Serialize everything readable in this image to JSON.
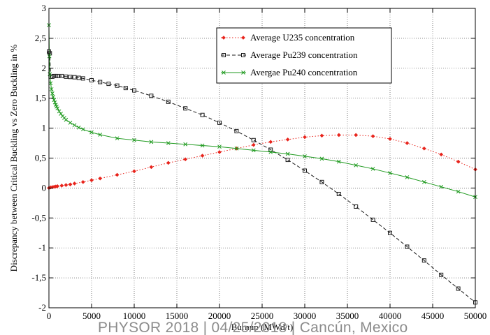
{
  "footer_text": "PHYSOR 2018 | 04/25/2018 | Cancún, Mexico",
  "chart_data": {
    "type": "line",
    "title": "",
    "xlabel": "Burnup (MWd/t)",
    "ylabel": "Discrepancy between Critical Buckling vs Zero Buckling in %",
    "xlim": [
      0,
      50000
    ],
    "ylim": [
      -2,
      3
    ],
    "grid": true,
    "grid_style": "dotted",
    "legend_position": "top-right",
    "xticks": [
      "0",
      "5000",
      "10000",
      "15000",
      "20000",
      "25000",
      "30000",
      "35000",
      "40000",
      "45000",
      "50000"
    ],
    "yticks": [
      "-2",
      "-1,5",
      "-1",
      "-0,5",
      "0",
      "0,5",
      "1",
      "1,5",
      "2",
      "2,5",
      "3"
    ],
    "series": [
      {
        "name": "Average U235 concentration",
        "color": "#e8231b",
        "line_style": "dotted",
        "marker": "diamond",
        "x": [
          0,
          200,
          400,
          600,
          800,
          1000,
          1500,
          2000,
          2500,
          3000,
          4000,
          5000,
          6000,
          8000,
          10000,
          12000,
          14000,
          16000,
          18000,
          20000,
          22000,
          24000,
          26000,
          28000,
          30000,
          32000,
          34000,
          36000,
          38000,
          40000,
          42000,
          44000,
          46000,
          48000,
          50000
        ],
        "y": [
          0.0,
          0.01,
          0.015,
          0.02,
          0.025,
          0.03,
          0.04,
          0.05,
          0.06,
          0.075,
          0.1,
          0.13,
          0.16,
          0.22,
          0.28,
          0.35,
          0.42,
          0.48,
          0.54,
          0.6,
          0.66,
          0.72,
          0.77,
          0.81,
          0.85,
          0.875,
          0.885,
          0.885,
          0.865,
          0.82,
          0.75,
          0.66,
          0.56,
          0.44,
          0.31
        ]
      },
      {
        "name": "Average Pu239 concentration",
        "color": "#1a1a1a",
        "line_style": "dashed",
        "marker": "square",
        "x": [
          0,
          100,
          200,
          400,
          600,
          800,
          1000,
          1500,
          2000,
          2500,
          3000,
          3500,
          4000,
          5000,
          6000,
          7000,
          8000,
          9000,
          10000,
          12000,
          14000,
          16000,
          18000,
          20000,
          22000,
          24000,
          26000,
          28000,
          30000,
          32000,
          34000,
          36000,
          38000,
          40000,
          42000,
          44000,
          46000,
          48000,
          50000
        ],
        "y": [
          2.28,
          2.25,
          1.86,
          1.86,
          1.87,
          1.87,
          1.87,
          1.87,
          1.86,
          1.855,
          1.85,
          1.84,
          1.83,
          1.8,
          1.77,
          1.74,
          1.71,
          1.67,
          1.63,
          1.54,
          1.44,
          1.33,
          1.22,
          1.09,
          0.95,
          0.8,
          0.64,
          0.47,
          0.29,
          0.1,
          -0.1,
          -0.31,
          -0.53,
          -0.75,
          -0.98,
          -1.21,
          -1.45,
          -1.68,
          -1.91
        ]
      },
      {
        "name": "Avergae Pu240 concentration",
        "color": "#1f9a1f",
        "line_style": "solid",
        "marker": "x",
        "x": [
          0,
          50,
          100,
          200,
          300,
          400,
          500,
          600,
          700,
          800,
          900,
          1000,
          1200,
          1400,
          1600,
          1800,
          2000,
          2500,
          3000,
          3500,
          4000,
          5000,
          6000,
          8000,
          10000,
          12000,
          14000,
          16000,
          18000,
          20000,
          22000,
          24000,
          26000,
          28000,
          30000,
          32000,
          34000,
          36000,
          38000,
          40000,
          42000,
          44000,
          46000,
          48000,
          50000
        ],
        "y": [
          2.72,
          2.2,
          1.9,
          1.75,
          1.65,
          1.58,
          1.52,
          1.47,
          1.43,
          1.39,
          1.36,
          1.33,
          1.28,
          1.24,
          1.2,
          1.17,
          1.14,
          1.09,
          1.05,
          1.01,
          0.98,
          0.93,
          0.89,
          0.83,
          0.8,
          0.77,
          0.75,
          0.73,
          0.71,
          0.69,
          0.66,
          0.63,
          0.6,
          0.57,
          0.53,
          0.49,
          0.44,
          0.38,
          0.32,
          0.25,
          0.18,
          0.1,
          0.02,
          -0.06,
          -0.15
        ]
      }
    ]
  }
}
